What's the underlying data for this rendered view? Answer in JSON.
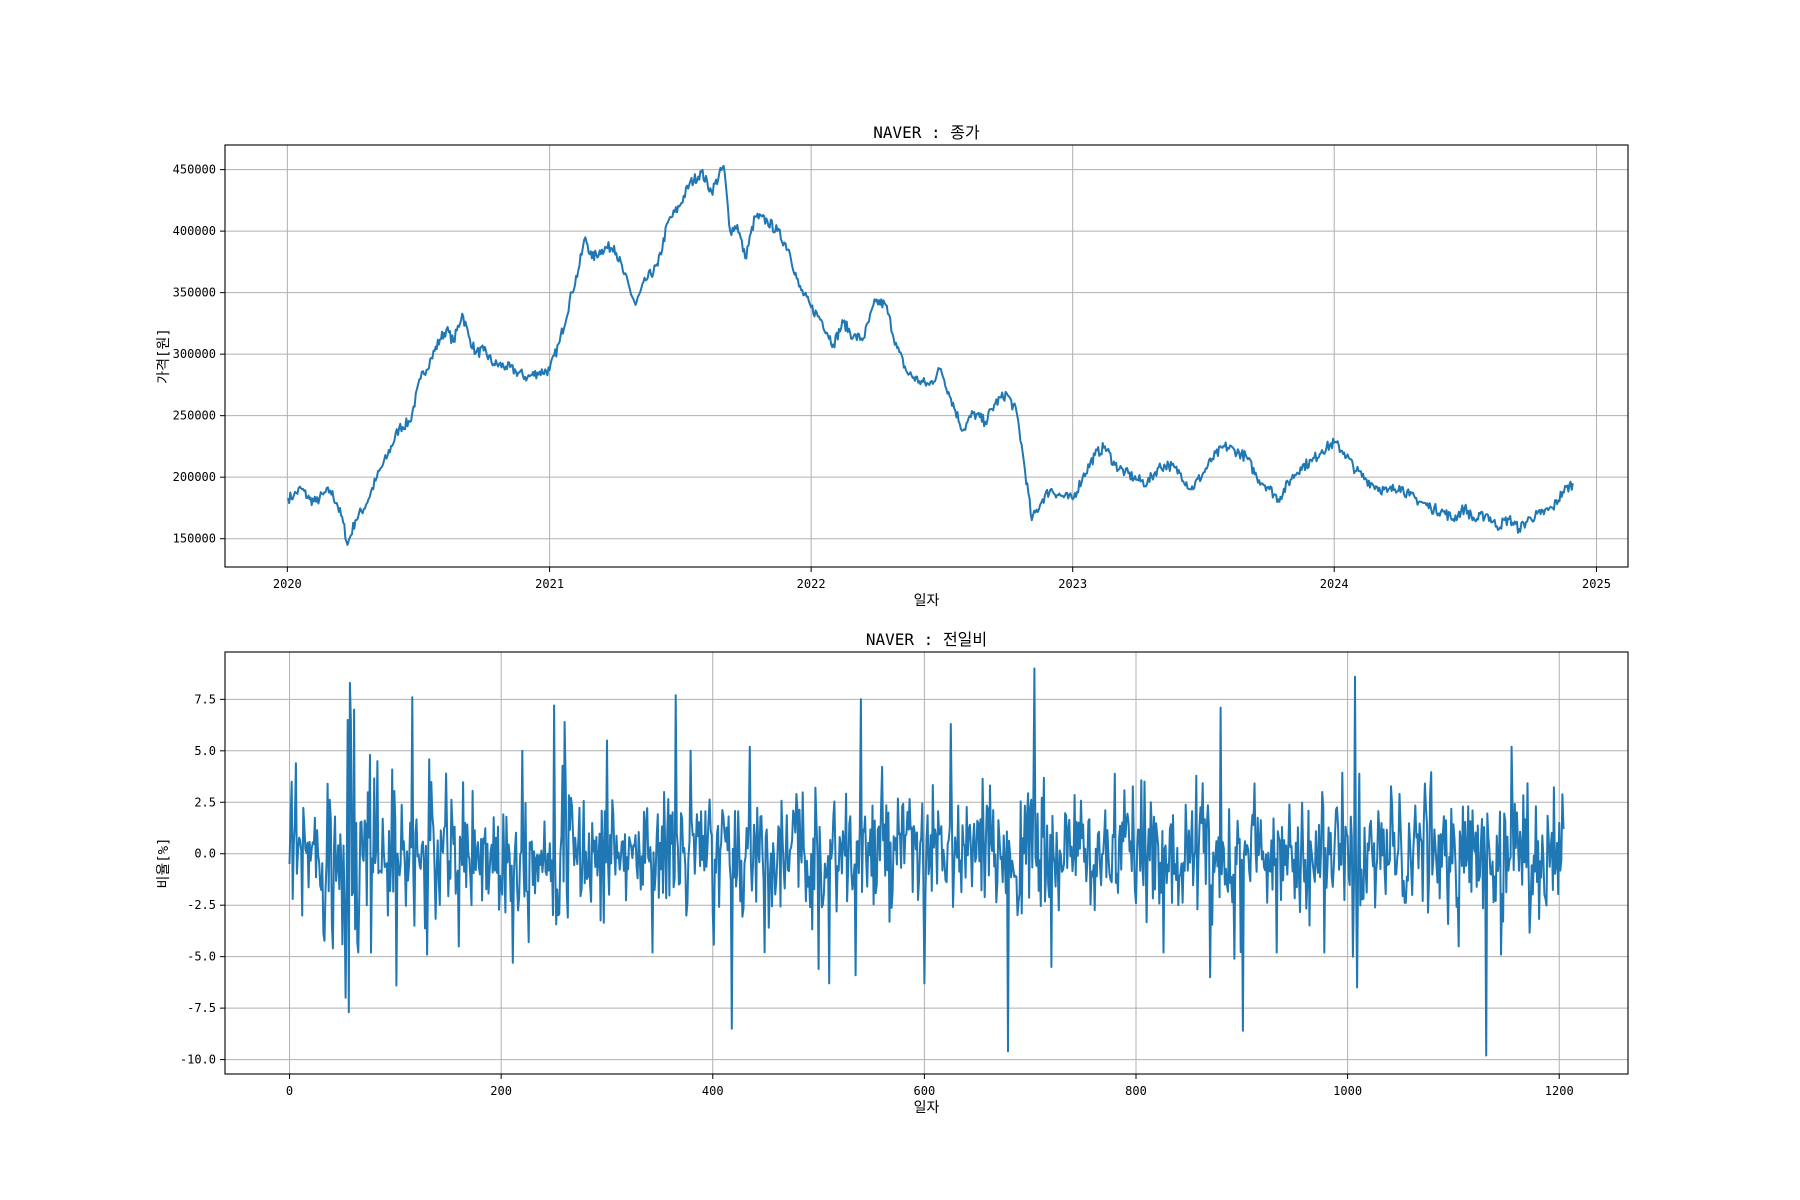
{
  "chart_data": [
    {
      "type": "line",
      "title": "NAVER : 종가",
      "xlabel": "일자",
      "ylabel": "가격[원]",
      "xlim": [
        "2019-10-06",
        "2025-02-14"
      ],
      "ylim": [
        127000,
        470000
      ],
      "x_ticks": [
        "2020",
        "2021",
        "2022",
        "2023",
        "2024",
        "2025"
      ],
      "y_ticks": [
        150000,
        200000,
        250000,
        300000,
        350000,
        400000,
        450000
      ],
      "y_tick_labels": [
        "150000",
        "200000",
        "250000",
        "300000",
        "350000",
        "400000",
        "450000"
      ],
      "grid": true,
      "series": [
        {
          "color": "#1f77b4",
          "x": [
            "2020-01-02",
            "2020-01-10",
            "2020-01-20",
            "2020-02-01",
            "2020-02-10",
            "2020-02-20",
            "2020-03-01",
            "2020-03-10",
            "2020-03-19",
            "2020-03-25",
            "2020-04-05",
            "2020-04-20",
            "2020-05-05",
            "2020-05-20",
            "2020-06-05",
            "2020-06-20",
            "2020-07-05",
            "2020-07-20",
            "2020-08-01",
            "2020-08-10",
            "2020-08-20",
            "2020-09-01",
            "2020-09-10",
            "2020-09-20",
            "2020-10-01",
            "2020-10-15",
            "2020-11-01",
            "2020-11-15",
            "2020-12-01",
            "2020-12-15",
            "2021-01-01",
            "2021-01-15",
            "2021-02-01",
            "2021-02-10",
            "2021-02-20",
            "2021-03-01",
            "2021-03-15",
            "2021-04-01",
            "2021-04-15",
            "2021-05-01",
            "2021-05-15",
            "2021-06-01",
            "2021-06-15",
            "2021-07-01",
            "2021-07-15",
            "2021-08-01",
            "2021-08-15",
            "2021-09-01",
            "2021-09-10",
            "2021-09-20",
            "2021-10-01",
            "2021-10-15",
            "2021-11-01",
            "2021-11-15",
            "2021-12-01",
            "2021-12-15",
            "2022-01-01",
            "2022-01-15",
            "2022-02-01",
            "2022-02-15",
            "2022-03-01",
            "2022-03-15",
            "2022-04-01",
            "2022-04-15",
            "2022-05-01",
            "2022-05-15",
            "2022-06-01",
            "2022-06-15",
            "2022-07-01",
            "2022-07-15",
            "2022-08-01",
            "2022-08-15",
            "2022-09-01",
            "2022-09-15",
            "2022-10-01",
            "2022-10-15",
            "2022-10-25",
            "2022-11-05",
            "2022-11-20",
            "2022-12-01",
            "2022-12-15",
            "2023-01-01",
            "2023-01-15",
            "2023-02-01",
            "2023-02-15",
            "2023-03-01",
            "2023-03-15",
            "2023-04-01",
            "2023-04-15",
            "2023-05-01",
            "2023-05-15",
            "2023-06-01",
            "2023-06-15",
            "2023-07-01",
            "2023-07-15",
            "2023-08-01",
            "2023-08-15",
            "2023-09-01",
            "2023-09-15",
            "2023-10-01",
            "2023-10-15",
            "2023-11-01",
            "2023-11-15",
            "2023-12-01",
            "2023-12-15",
            "2024-01-01",
            "2024-01-15",
            "2024-02-01",
            "2024-02-15",
            "2024-03-01",
            "2024-03-15",
            "2024-04-01",
            "2024-04-15",
            "2024-05-01",
            "2024-05-15",
            "2024-06-01",
            "2024-06-15",
            "2024-07-01",
            "2024-07-15",
            "2024-08-01",
            "2024-08-15",
            "2024-09-01",
            "2024-09-15",
            "2024-10-01",
            "2024-10-15",
            "2024-11-01",
            "2024-11-15",
            "2024-11-29"
          ],
          "y": [
            183000,
            185000,
            191000,
            182000,
            180000,
            186000,
            189000,
            179000,
            163000,
            145000,
            165000,
            178000,
            200000,
            218000,
            240000,
            245000,
            280000,
            297000,
            312000,
            320000,
            310000,
            333000,
            315000,
            301000,
            303000,
            292000,
            290000,
            286000,
            281000,
            285000,
            287000,
            310000,
            350000,
            368000,
            395000,
            378000,
            385000,
            388000,
            365000,
            340000,
            360000,
            372000,
            407000,
            420000,
            438000,
            448000,
            432000,
            453000,
            400000,
            405000,
            378000,
            412000,
            408000,
            400000,
            385000,
            355000,
            338000,
            328000,
            308000,
            326000,
            314000,
            313000,
            343000,
            340000,
            305000,
            285000,
            278000,
            275000,
            288000,
            264000,
            238000,
            252000,
            245000,
            260000,
            268000,
            252000,
            212000,
            165000,
            182000,
            190000,
            185000,
            182000,
            200000,
            218000,
            225000,
            210000,
            204000,
            198000,
            195000,
            208000,
            210000,
            203000,
            190000,
            202000,
            215000,
            225000,
            222000,
            216000,
            200000,
            192000,
            182000,
            198000,
            208000,
            213000,
            222000,
            228000,
            220000,
            205000,
            198000,
            192000,
            188000,
            193000,
            185000,
            180000,
            175000,
            172000,
            166000,
            175000,
            165000,
            170000,
            160000,
            166000,
            158000,
            167000,
            170000,
            175000,
            188000,
            195000
          ]
        }
      ]
    },
    {
      "type": "line",
      "title": "NAVER : 전일비",
      "xlabel": "일자",
      "ylabel": "비율[%]",
      "xlim": [
        -61,
        1265
      ],
      "ylim": [
        -10.7,
        9.8
      ],
      "x_ticks": [
        0,
        200,
        400,
        600,
        800,
        1000,
        1200
      ],
      "x_tick_labels": [
        "0",
        "200",
        "400",
        "600",
        "800",
        "1000",
        "1200"
      ],
      "y_ticks": [
        -10.0,
        -7.5,
        -5.0,
        -2.5,
        0.0,
        2.5,
        5.0,
        7.5
      ],
      "y_tick_labels": [
        "-10.0",
        "-7.5",
        "-5.0",
        "-2.5",
        "0.0",
        "2.5",
        "5.0",
        "7.5"
      ],
      "grid": true,
      "n_points": 1205,
      "series": [
        {
          "color": "#1f77b4",
          "highlights": [
            [
              0,
              -0.5
            ],
            [
              2,
              3.5
            ],
            [
              3,
              -2.2
            ],
            [
              5,
              1.4
            ],
            [
              12,
              -3.0
            ],
            [
              36,
              3.4
            ],
            [
              41,
              -4.6
            ],
            [
              50,
              -4.4
            ],
            [
              53,
              -7.0
            ],
            [
              55,
              6.5
            ],
            [
              56,
              -7.7
            ],
            [
              57,
              8.3
            ],
            [
              58,
              6.4
            ],
            [
              61,
              7.0
            ],
            [
              64,
              -4.3
            ],
            [
              76,
              4.8
            ],
            [
              83,
              4.5
            ],
            [
              93,
              -3.0
            ],
            [
              101,
              -6.4
            ],
            [
              116,
              7.6
            ],
            [
              118,
              -3.5
            ],
            [
              130,
              -4.9
            ],
            [
              160,
              -4.5
            ],
            [
              211,
              -5.3
            ],
            [
              220,
              5.0
            ],
            [
              250,
              7.2
            ],
            [
              260,
              6.4
            ],
            [
              300,
              5.5
            ],
            [
              365,
              7.7
            ],
            [
              379,
              5.0
            ],
            [
              418,
              -8.5
            ],
            [
              435,
              5.2
            ],
            [
              500,
              -5.6
            ],
            [
              510,
              -6.3
            ],
            [
              535,
              -5.9
            ],
            [
              540,
              7.5
            ],
            [
              600,
              -6.3
            ],
            [
              625,
              6.3
            ],
            [
              679,
              -9.6
            ],
            [
              704,
              9.0
            ],
            [
              720,
              -5.5
            ],
            [
              870,
              -6.0
            ],
            [
              880,
              7.1
            ],
            [
              893,
              -5.1
            ],
            [
              901,
              -8.6
            ],
            [
              1005,
              -5.0
            ],
            [
              1007,
              8.6
            ],
            [
              1009,
              -6.5
            ],
            [
              1105,
              -4.5
            ],
            [
              1131,
              -9.8
            ],
            [
              1145,
              -4.9
            ],
            [
              1155,
              5.2
            ],
            [
              1200,
              1.5
            ],
            [
              1204,
              1.2
            ]
          ]
        }
      ]
    }
  ]
}
